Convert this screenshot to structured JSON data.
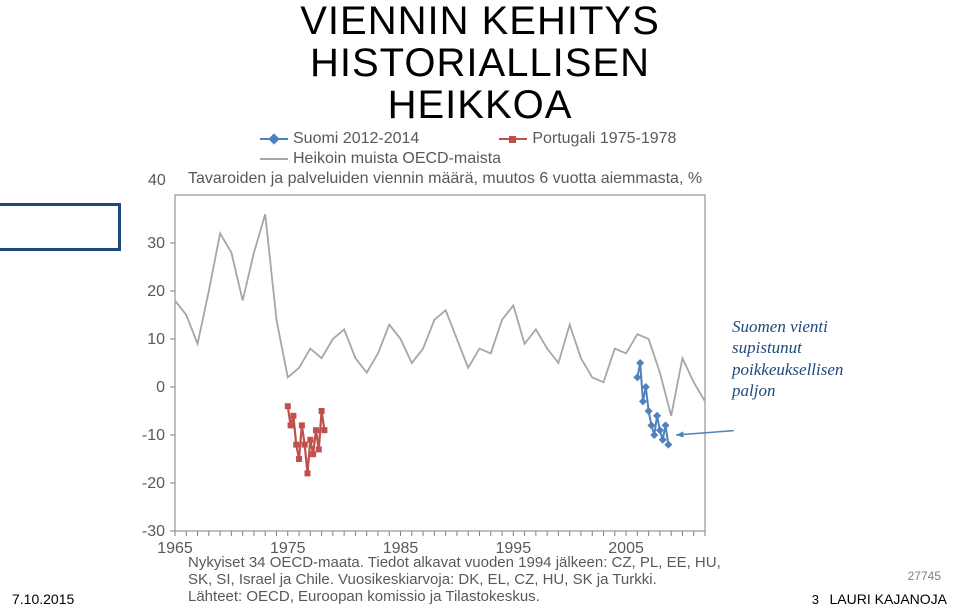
{
  "title": {
    "line1": "VIENNIN KEHITYS",
    "line2": "HISTORIALLISEN",
    "line3": "HEIKKOA"
  },
  "legend": {
    "series1": {
      "label": "Suomi 2012-2014",
      "color": "#4f81bd",
      "marker": "diamond"
    },
    "series2": {
      "label": "Portugali 1975-1978",
      "color": "#c0504d",
      "marker": "square"
    },
    "series3": {
      "label": "Heikoin muista OECD-maista",
      "color": "#a6a6a6",
      "marker": "none"
    }
  },
  "subtitle_yval": "40",
  "subtitle": "Tavaroiden ja palveluiden viennin määrä, muutos 6 vuotta aiemmasta, %",
  "chart": {
    "type": "line",
    "xlim": [
      1965,
      2012
    ],
    "ylim": [
      -30,
      40
    ],
    "yticks": [
      -30,
      -20,
      -10,
      0,
      10,
      20,
      30,
      40
    ],
    "xticks": [
      1965,
      1975,
      1985,
      1995,
      2005
    ],
    "ytick_step": 10,
    "background_color": "#ffffff",
    "grid_color": "#d9d9d9",
    "axis_color": "#808080",
    "tick_mark_color": "#808080",
    "grey_series_color": "#a6a6a6",
    "grey_line_width": 1.8,
    "blue_series_color": "#4f81bd",
    "blue_line_width": 2,
    "red_series_color": "#c0504d",
    "red_line_width": 2.2,
    "arrow_color": "#4f81bd",
    "series_grey": [
      [
        1965,
        18
      ],
      [
        1966,
        15
      ],
      [
        1967,
        9
      ],
      [
        1968,
        20
      ],
      [
        1969,
        32
      ],
      [
        1970,
        28
      ],
      [
        1971,
        18
      ],
      [
        1972,
        28
      ],
      [
        1973,
        36
      ],
      [
        1974,
        14
      ],
      [
        1975,
        2
      ],
      [
        1976,
        4
      ],
      [
        1977,
        8
      ],
      [
        1978,
        6
      ],
      [
        1979,
        10
      ],
      [
        1980,
        12
      ],
      [
        1981,
        6
      ],
      [
        1982,
        3
      ],
      [
        1983,
        7
      ],
      [
        1984,
        13
      ],
      [
        1985,
        10
      ],
      [
        1986,
        5
      ],
      [
        1987,
        8
      ],
      [
        1988,
        14
      ],
      [
        1989,
        16
      ],
      [
        1990,
        10
      ],
      [
        1991,
        4
      ],
      [
        1992,
        8
      ],
      [
        1993,
        7
      ],
      [
        1994,
        14
      ],
      [
        1995,
        17
      ],
      [
        1996,
        9
      ],
      [
        1997,
        12
      ],
      [
        1998,
        8
      ],
      [
        1999,
        5
      ],
      [
        2000,
        13
      ],
      [
        2001,
        6
      ],
      [
        2002,
        2
      ],
      [
        2003,
        1
      ],
      [
        2004,
        8
      ],
      [
        2005,
        7
      ],
      [
        2006,
        11
      ],
      [
        2007,
        10
      ],
      [
        2008,
        3
      ],
      [
        2009,
        -6
      ],
      [
        2010,
        6
      ],
      [
        2011,
        1
      ],
      [
        2012,
        -3
      ]
    ],
    "series_blue": [
      [
        2006.0,
        2
      ],
      [
        2006.25,
        5
      ],
      [
        2006.5,
        -3
      ],
      [
        2006.75,
        0
      ],
      [
        2007.0,
        -5
      ],
      [
        2007.25,
        -8
      ],
      [
        2007.5,
        -10
      ],
      [
        2007.75,
        -6
      ],
      [
        2008.0,
        -9
      ],
      [
        2008.25,
        -11
      ],
      [
        2008.5,
        -8
      ],
      [
        2008.75,
        -12
      ]
    ],
    "series_red": [
      [
        1975.0,
        -4
      ],
      [
        1975.25,
        -8
      ],
      [
        1975.5,
        -6
      ],
      [
        1975.75,
        -12
      ],
      [
        1976.0,
        -15
      ],
      [
        1976.25,
        -8
      ],
      [
        1976.5,
        -12
      ],
      [
        1976.75,
        -18
      ],
      [
        1977.0,
        -11
      ],
      [
        1977.25,
        -14
      ],
      [
        1977.5,
        -9
      ],
      [
        1977.75,
        -13
      ],
      [
        1978.0,
        -5
      ],
      [
        1978.25,
        -9
      ]
    ],
    "arrow_from": [
      2008.9,
      -10
    ],
    "arrow_to_area": [
      2012.5,
      -7
    ]
  },
  "annotation": {
    "text1": "Suomen vienti",
    "text2": "supistunut",
    "text3": "poikkeuksellisen",
    "text4": "paljon"
  },
  "footer": {
    "line1": "Nykyiset 34 OECD-maata. Tiedot alkavat vuoden 1994 jälkeen: CZ, PL, EE, HU,",
    "line2": "SK, SI, Israel ja Chile. Vuosikeskiarvoja: DK, EL, CZ, HU, SK ja Turkki.",
    "line3": "Lähteet: OECD, Euroopan komissio ja Tilastokeskus."
  },
  "meta": {
    "date": "7.10.2015",
    "author": "LAURI KAJANOJA",
    "code": "27745",
    "pagenum": "3"
  }
}
